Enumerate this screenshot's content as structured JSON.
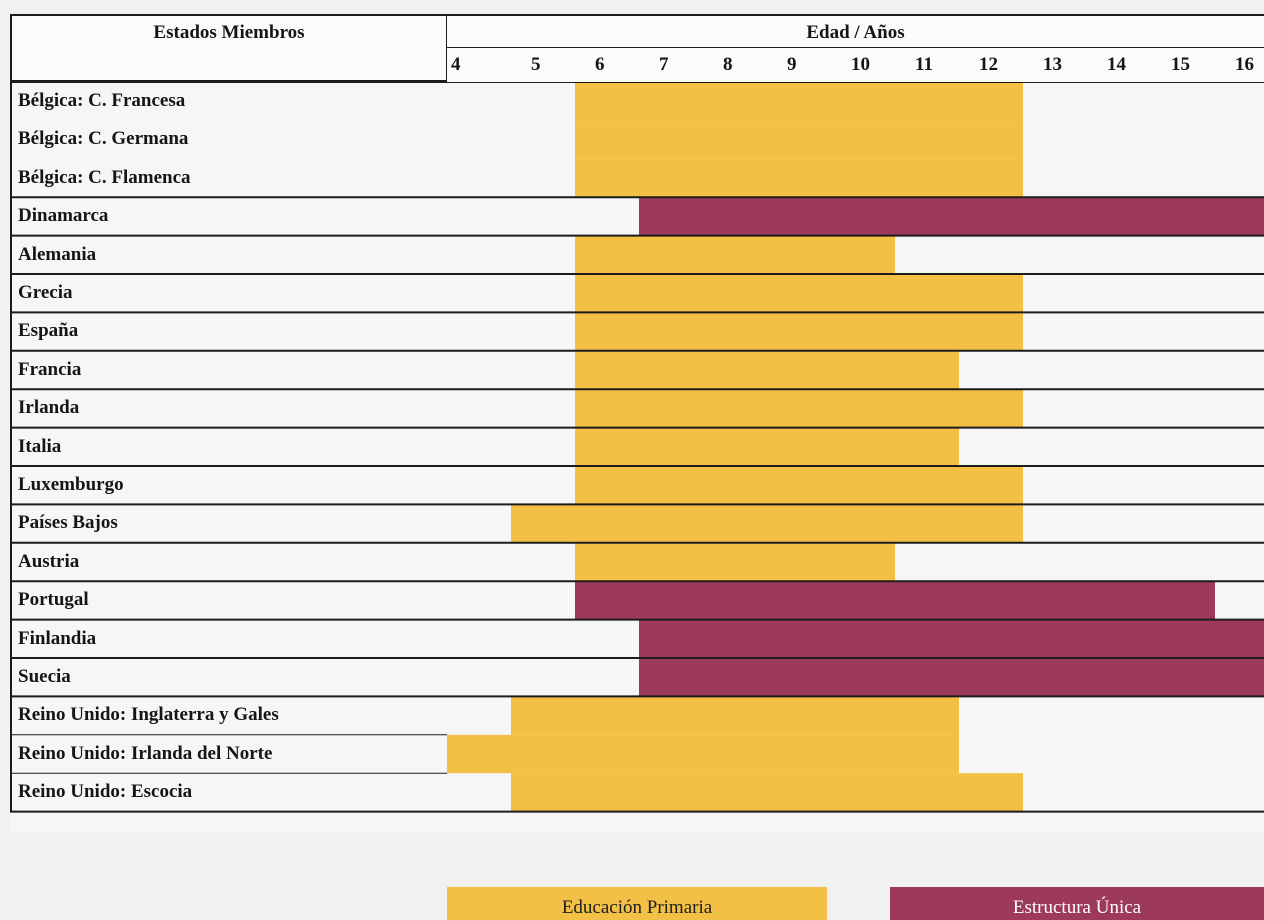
{
  "chart_data": {
    "type": "table",
    "header": {
      "states_label": "Estados Miembros",
      "age_label": "Edad / Años"
    },
    "ages": [
      "4",
      "5",
      "6",
      "7",
      "8",
      "9",
      "10",
      "11",
      "12",
      "13",
      "14",
      "15",
      "16"
    ],
    "rows": [
      {
        "name": "Bélgica: C. Francesa",
        "stage": "Educación Primaria",
        "from": 6,
        "to": 12
      },
      {
        "name": "Bélgica: C. Germana",
        "stage": "Educación Primaria",
        "from": 6,
        "to": 12
      },
      {
        "name": "Bélgica: C. Flamenca",
        "stage": "Educación Primaria",
        "from": 6,
        "to": 12
      },
      {
        "name": "Dinamarca",
        "stage": "Estructura Única",
        "from": 7,
        "to": 16
      },
      {
        "name": "Alemania",
        "stage": "Educación Primaria",
        "from": 6,
        "to": 10
      },
      {
        "name": "Grecia",
        "stage": "Educación Primaria",
        "from": 6,
        "to": 12
      },
      {
        "name": "España",
        "stage": "Educación Primaria",
        "from": 6,
        "to": 12
      },
      {
        "name": "Francia",
        "stage": "Educación Primaria",
        "from": 6,
        "to": 11
      },
      {
        "name": "Irlanda",
        "stage": "Educación Primaria",
        "from": 6,
        "to": 12
      },
      {
        "name": "Italia",
        "stage": "Educación Primaria",
        "from": 6,
        "to": 11
      },
      {
        "name": "Luxemburgo",
        "stage": "Educación Primaria",
        "from": 6,
        "to": 12
      },
      {
        "name": "Países Bajos",
        "stage": "Educación Primaria",
        "from": 5,
        "to": 12
      },
      {
        "name": "Austria",
        "stage": "Educación Primaria",
        "from": 6,
        "to": 10
      },
      {
        "name": "Portugal",
        "stage": "Estructura Única",
        "from": 6,
        "to": 15
      },
      {
        "name": "Finlandia",
        "stage": "Estructura Única",
        "from": 7,
        "to": 16
      },
      {
        "name": "Suecia",
        "stage": "Estructura Única",
        "from": 7,
        "to": 16
      },
      {
        "name": "Reino Unido: Inglaterra y Gales",
        "stage": "Educación Primaria",
        "from": 5,
        "to": 11
      },
      {
        "name": "Reino Unido: Irlanda del Norte",
        "stage": "Educación Primaria",
        "from": 4,
        "to": 11
      },
      {
        "name": "Reino Unido: Escocia",
        "stage": "Educación Primaria",
        "from": 5,
        "to": 12
      }
    ],
    "legend": [
      {
        "label": "Educación Primaria",
        "color": "#f1c044"
      },
      {
        "label": "Estructura Única",
        "color": "#9d3a5c"
      }
    ],
    "xlim": [
      4,
      17
    ]
  }
}
